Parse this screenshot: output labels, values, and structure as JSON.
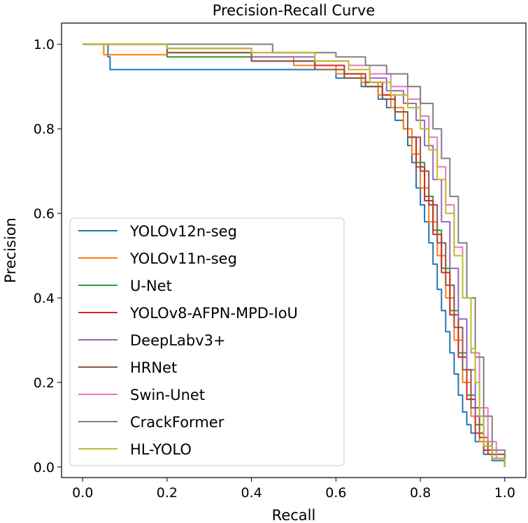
{
  "chart_data": {
    "type": "line",
    "title": "Precision-Recall Curve",
    "xlabel": "Recall",
    "ylabel": "Precision",
    "xlim": [
      -0.05,
      1.05
    ],
    "ylim": [
      -0.025,
      1.05
    ],
    "xticks": [
      0.0,
      0.2,
      0.4,
      0.6,
      0.8,
      1.0
    ],
    "yticks": [
      0.0,
      0.2,
      0.4,
      0.6,
      0.8,
      1.0
    ],
    "tick_labels_x": [
      "0.0",
      "0.2",
      "0.4",
      "0.6",
      "0.8",
      "1.0"
    ],
    "tick_labels_y": [
      "0.0",
      "0.2",
      "0.4",
      "0.6",
      "0.8",
      "1.0"
    ],
    "grid": false,
    "legend_position": "lower-left",
    "series": [
      {
        "name": "YOLOv12n-seg",
        "color": "#1f77b4",
        "x": [
          0,
          0.055,
          0.06,
          0.065,
          0.07,
          0.3,
          0.5,
          0.6,
          0.66,
          0.7,
          0.72,
          0.74,
          0.76,
          0.77,
          0.78,
          0.79,
          0.8,
          0.81,
          0.82,
          0.83,
          0.84,
          0.85,
          0.86,
          0.87,
          0.88,
          0.89,
          0.9,
          0.91,
          0.92,
          0.93,
          0.95,
          0.97,
          1.0
        ],
        "y": [
          1.0,
          1.0,
          0.97,
          0.94,
          0.94,
          0.94,
          0.94,
          0.92,
          0.9,
          0.87,
          0.85,
          0.82,
          0.8,
          0.76,
          0.72,
          0.66,
          0.62,
          0.58,
          0.53,
          0.48,
          0.42,
          0.37,
          0.32,
          0.27,
          0.22,
          0.17,
          0.13,
          0.1,
          0.08,
          0.06,
          0.03,
          0.015,
          0.0
        ]
      },
      {
        "name": "YOLOv11n-seg",
        "color": "#ff7f0e",
        "x": [
          0,
          0.03,
          0.05,
          0.2,
          0.5,
          0.6,
          0.66,
          0.7,
          0.73,
          0.76,
          0.78,
          0.8,
          0.82,
          0.84,
          0.86,
          0.88,
          0.9,
          0.92,
          0.94,
          0.96,
          1.0
        ],
        "y": [
          1.0,
          1.0,
          0.975,
          0.97,
          0.95,
          0.93,
          0.91,
          0.88,
          0.85,
          0.8,
          0.74,
          0.66,
          0.58,
          0.5,
          0.4,
          0.3,
          0.2,
          0.12,
          0.06,
          0.03,
          0.0
        ]
      },
      {
        "name": "U-Net",
        "color": "#2ca02c",
        "x": [
          0,
          0.2,
          0.4,
          0.55,
          0.62,
          0.67,
          0.71,
          0.74,
          0.77,
          0.79,
          0.81,
          0.83,
          0.85,
          0.87,
          0.89,
          0.91,
          0.93,
          0.95,
          0.97,
          1.0
        ],
        "y": [
          1.0,
          0.97,
          0.96,
          0.94,
          0.92,
          0.9,
          0.87,
          0.84,
          0.78,
          0.72,
          0.64,
          0.56,
          0.47,
          0.37,
          0.27,
          0.17,
          0.1,
          0.05,
          0.02,
          0.0
        ]
      },
      {
        "name": "YOLOv8-AFPN-MPD-IoU",
        "color": "#d62728",
        "x": [
          0,
          0.2,
          0.4,
          0.55,
          0.62,
          0.67,
          0.71,
          0.74,
          0.77,
          0.79,
          0.81,
          0.83,
          0.85,
          0.87,
          0.89,
          0.91,
          0.93,
          0.95,
          0.97,
          1.0
        ],
        "y": [
          1.0,
          0.98,
          0.96,
          0.95,
          0.93,
          0.91,
          0.88,
          0.84,
          0.78,
          0.71,
          0.63,
          0.55,
          0.46,
          0.36,
          0.26,
          0.16,
          0.08,
          0.04,
          0.02,
          0.0
        ]
      },
      {
        "name": "DeepLabv3+",
        "color": "#9467bd",
        "x": [
          0,
          0.2,
          0.4,
          0.55,
          0.63,
          0.68,
          0.72,
          0.76,
          0.79,
          0.81,
          0.83,
          0.85,
          0.87,
          0.89,
          0.91,
          0.93,
          0.95,
          0.97,
          1.0
        ],
        "y": [
          1.0,
          0.99,
          0.97,
          0.96,
          0.94,
          0.92,
          0.89,
          0.86,
          0.82,
          0.76,
          0.68,
          0.58,
          0.47,
          0.35,
          0.23,
          0.12,
          0.05,
          0.02,
          0.0
        ]
      },
      {
        "name": "HRNet",
        "color": "#8c564b",
        "x": [
          0,
          0.2,
          0.4,
          0.55,
          0.62,
          0.67,
          0.71,
          0.74,
          0.77,
          0.8,
          0.82,
          0.84,
          0.86,
          0.88,
          0.9,
          0.92,
          0.94,
          0.96,
          1.0
        ],
        "y": [
          1.0,
          0.98,
          0.96,
          0.94,
          0.92,
          0.9,
          0.87,
          0.84,
          0.78,
          0.7,
          0.62,
          0.53,
          0.43,
          0.33,
          0.23,
          0.14,
          0.07,
          0.03,
          0.0
        ]
      },
      {
        "name": "Swin-Unet",
        "color": "#e377c2",
        "x": [
          0,
          0.2,
          0.4,
          0.55,
          0.63,
          0.68,
          0.73,
          0.77,
          0.8,
          0.82,
          0.84,
          0.86,
          0.88,
          0.9,
          0.92,
          0.94,
          0.96,
          0.98,
          1.0
        ],
        "y": [
          1.0,
          0.99,
          0.98,
          0.96,
          0.95,
          0.93,
          0.9,
          0.87,
          0.83,
          0.78,
          0.71,
          0.62,
          0.52,
          0.4,
          0.27,
          0.14,
          0.06,
          0.02,
          0.0
        ]
      },
      {
        "name": "CrackFormer",
        "color": "#7f7f7f",
        "x": [
          0,
          0.25,
          0.45,
          0.6,
          0.67,
          0.72,
          0.77,
          0.8,
          0.83,
          0.85,
          0.87,
          0.89,
          0.91,
          0.93,
          0.95,
          0.97,
          1.0
        ],
        "y": [
          1.0,
          1.0,
          0.98,
          0.97,
          0.95,
          0.93,
          0.9,
          0.86,
          0.8,
          0.73,
          0.64,
          0.53,
          0.4,
          0.26,
          0.12,
          0.04,
          0.0
        ]
      },
      {
        "name": "HL-YOLO",
        "color": "#bcbd22",
        "x": [
          0,
          0.2,
          0.4,
          0.55,
          0.63,
          0.68,
          0.73,
          0.77,
          0.8,
          0.82,
          0.84,
          0.86,
          0.88,
          0.9,
          0.92,
          0.93,
          0.94,
          0.95,
          0.97,
          1.0
        ],
        "y": [
          1.0,
          0.99,
          0.98,
          0.96,
          0.94,
          0.91,
          0.88,
          0.85,
          0.8,
          0.75,
          0.68,
          0.6,
          0.5,
          0.4,
          0.28,
          0.2,
          0.12,
          0.05,
          0.02,
          0.0
        ]
      }
    ]
  }
}
